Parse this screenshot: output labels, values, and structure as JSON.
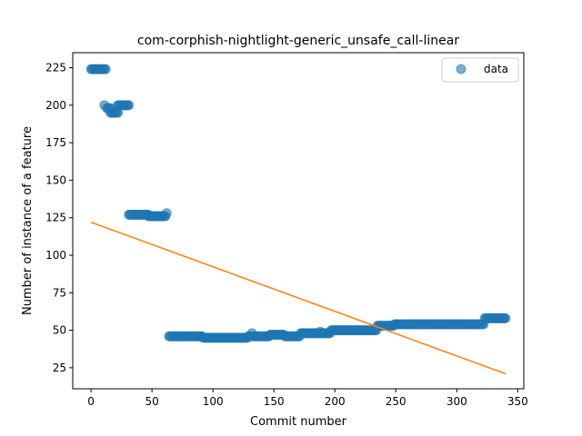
{
  "chart_data": {
    "type": "scatter",
    "title": "com-corphish-nightlight-generic_unsafe_call-linear",
    "xlabel": "Commit number",
    "ylabel": "Number of instance of a feature",
    "xlim": [
      -15,
      355
    ],
    "ylim": [
      11,
      235
    ],
    "xticks": [
      0,
      50,
      100,
      150,
      200,
      250,
      300,
      350
    ],
    "yticks": [
      25,
      50,
      75,
      100,
      125,
      150,
      175,
      200,
      225
    ],
    "grid": false,
    "legend_position": "top-right",
    "series": [
      {
        "name": "data",
        "kind": "scatter",
        "color": "#1f77b4",
        "segments": [
          {
            "x_start": 0,
            "x_end": 12,
            "y": 224
          },
          {
            "x_start": 11,
            "x_end": 11,
            "y": 200
          },
          {
            "x_start": 13,
            "x_end": 16,
            "y": 198
          },
          {
            "x_start": 16,
            "x_end": 22,
            "y": 195
          },
          {
            "x_start": 22,
            "x_end": 31,
            "y": 200
          },
          {
            "x_start": 31,
            "x_end": 47,
            "y": 127
          },
          {
            "x_start": 47,
            "x_end": 61,
            "y": 126
          },
          {
            "x_start": 62,
            "x_end": 62,
            "y": 128
          },
          {
            "x_start": 64,
            "x_end": 91,
            "y": 46
          },
          {
            "x_start": 92,
            "x_end": 128,
            "y": 45
          },
          {
            "x_start": 129,
            "x_end": 131,
            "y": 46
          },
          {
            "x_start": 132,
            "x_end": 132,
            "y": 48
          },
          {
            "x_start": 133,
            "x_end": 146,
            "y": 46
          },
          {
            "x_start": 147,
            "x_end": 158,
            "y": 47
          },
          {
            "x_start": 159,
            "x_end": 171,
            "y": 46
          },
          {
            "x_start": 172,
            "x_end": 196,
            "y": 48
          },
          {
            "x_start": 188,
            "x_end": 188,
            "y": 49
          },
          {
            "x_start": 197,
            "x_end": 234,
            "y": 50
          },
          {
            "x_start": 235,
            "x_end": 248,
            "y": 53
          },
          {
            "x_start": 249,
            "x_end": 322,
            "y": 54
          },
          {
            "x_start": 323,
            "x_end": 340,
            "y": 58
          }
        ]
      },
      {
        "kind": "line",
        "color": "#ff7f0e",
        "x": [
          0,
          340
        ],
        "y": [
          122,
          21
        ]
      }
    ]
  }
}
